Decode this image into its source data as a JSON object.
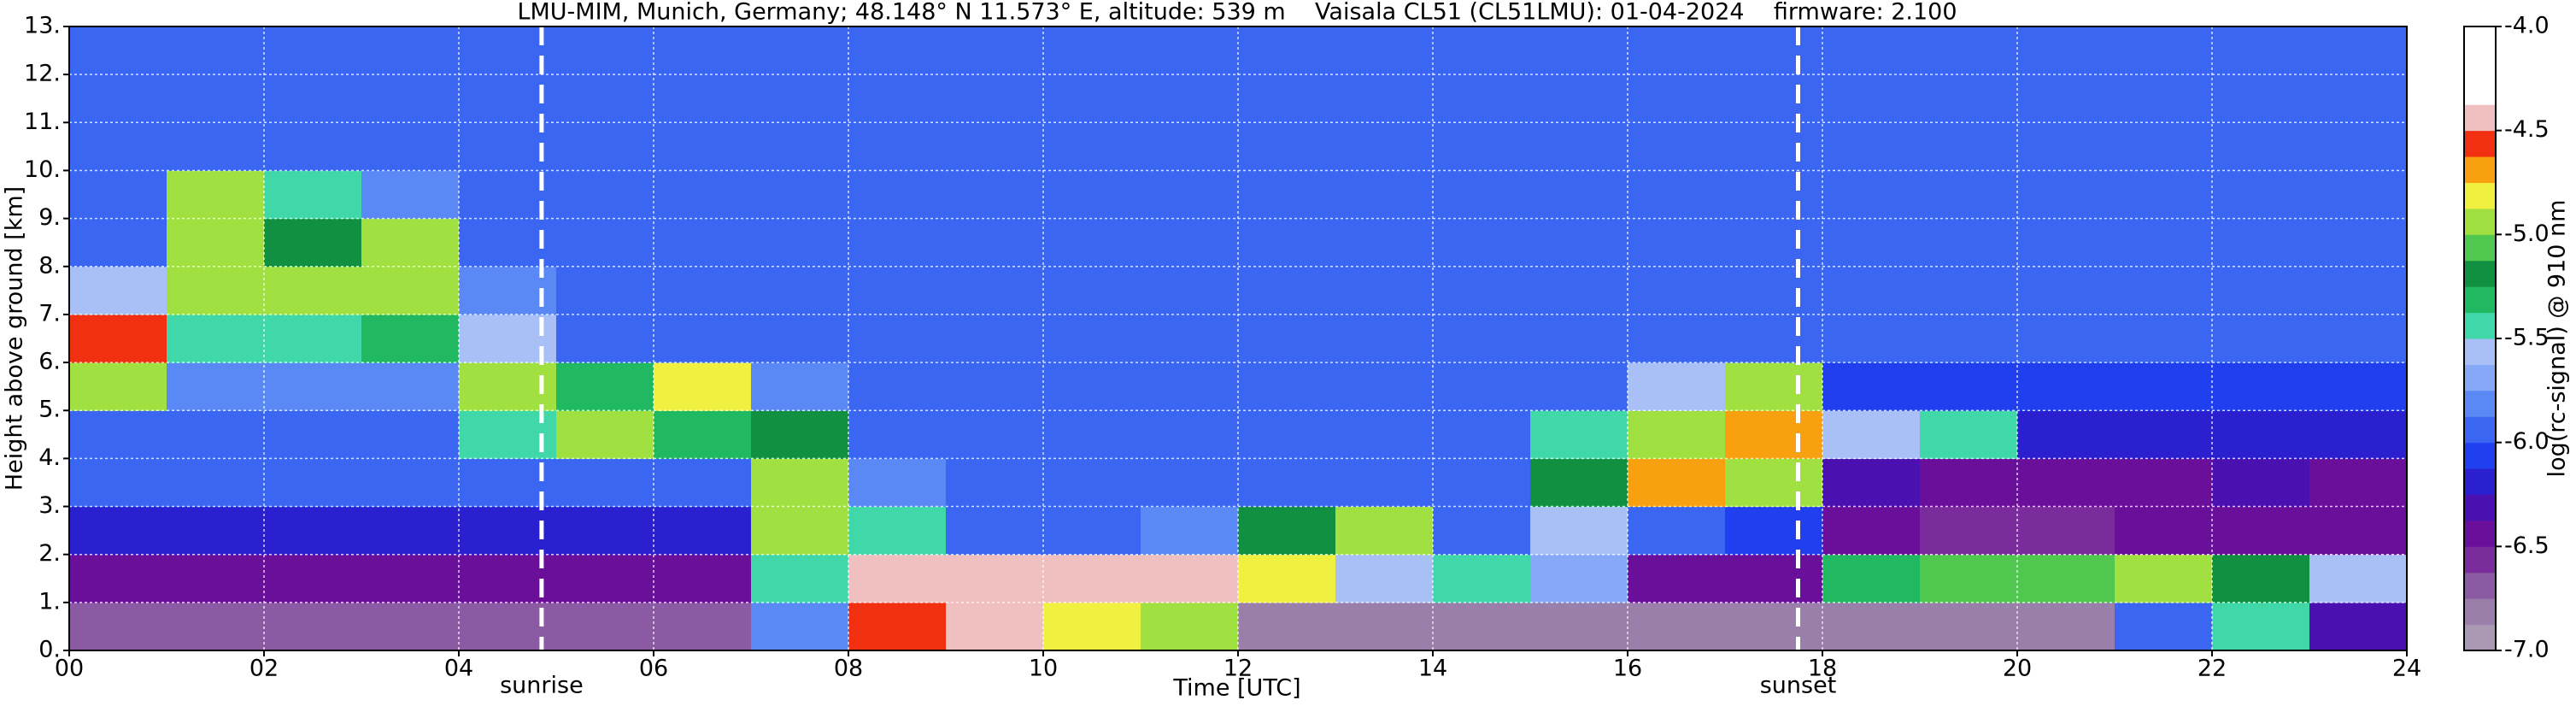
{
  "chart_data": {
    "type": "heatmap",
    "title": "LMU-MIM, Munich, Germany; 48.148° N 11.573° E, altitude: 539 m    Vaisala CL51 (CL51LMU): 01-04-2024    firmware: 2.100",
    "xlabel": "Time [UTC]",
    "ylabel": "Height above ground [km]",
    "colorbar_label": "log(rc-signal) @ 910 nm",
    "xlim": [
      0,
      24
    ],
    "ylim": [
      0,
      13
    ],
    "xticks": [
      {
        "value": 0,
        "label": "00"
      },
      {
        "value": 2,
        "label": "02"
      },
      {
        "value": 4,
        "label": "04"
      },
      {
        "value": 6,
        "label": "06"
      },
      {
        "value": 8,
        "label": "08"
      },
      10,
      12,
      14,
      16,
      18,
      20,
      22,
      24
    ],
    "yticks": [
      {
        "value": 0,
        "label": "0."
      },
      {
        "value": 1,
        "label": "1."
      },
      {
        "value": 2,
        "label": "2."
      },
      {
        "value": 3,
        "label": "3."
      },
      {
        "value": 4,
        "label": "4."
      },
      {
        "value": 5,
        "label": "5."
      },
      {
        "value": 6,
        "label": "6."
      },
      {
        "value": 7,
        "label": "7."
      },
      {
        "value": 8,
        "label": "8."
      },
      {
        "value": 9,
        "label": "9."
      },
      {
        "value": 10,
        "label": "10."
      },
      {
        "value": 11,
        "label": "11."
      },
      {
        "value": 12,
        "label": "12."
      },
      {
        "value": 13,
        "label": "13."
      }
    ],
    "grid": true,
    "zlim": [
      -7,
      -4
    ],
    "cbticks": [
      {
        "value": -7,
        "label": "-7.0"
      },
      {
        "value": -6.5,
        "label": "-6.5"
      },
      {
        "value": -6,
        "label": "-6.0"
      },
      {
        "value": -5.5,
        "label": "-5.5"
      },
      {
        "value": -5,
        "label": "-5.0"
      },
      {
        "value": -4.5,
        "label": "-4.5"
      },
      {
        "value": -4,
        "label": "-4.0"
      }
    ],
    "colormap": [
      "#a999b3",
      "#9a7fab",
      "#8a5aa3",
      "#7a2c9c",
      "#6a0f9a",
      "#4a10b0",
      "#2a20d0",
      "#2040f0",
      "#3a66f2",
      "#5a88f4",
      "#86a8f6",
      "#a8c0f6",
      "#40d8a8",
      "#20b860",
      "#109040",
      "#50c850",
      "#a0e040",
      "#f0f040",
      "#f8a010",
      "#f03010",
      "#f0c0c0",
      "#ffffff",
      "#ffffff",
      "#ffffff"
    ],
    "xbins": [
      0,
      1,
      2,
      3,
      4,
      5,
      6,
      7,
      8,
      9,
      10,
      11,
      12,
      13,
      14,
      15,
      16,
      17,
      18,
      19,
      20,
      21,
      22,
      23,
      24
    ],
    "ybins": [
      0,
      1,
      2,
      3,
      4,
      5,
      6,
      7,
      8,
      9,
      10,
      11,
      12,
      13
    ],
    "z": [
      [
        -6.7,
        -6.7,
        -6.7,
        -6.7,
        -6.7,
        -6.7,
        -6.7,
        -5.8,
        -4.6,
        -4.5,
        -4.8,
        -5.0,
        -6.8,
        -6.8,
        -6.8,
        -6.8,
        -6.8,
        -6.8,
        -6.8,
        -6.8,
        -6.8,
        -6.0,
        -5.5,
        -6.3
      ],
      [
        -6.5,
        -6.5,
        -6.5,
        -6.5,
        -6.5,
        -6.5,
        -6.5,
        -5.5,
        -4.5,
        -4.4,
        -4.4,
        -4.5,
        -4.8,
        -5.6,
        -5.5,
        -5.7,
        -6.4,
        -6.4,
        -5.3,
        -5.1,
        -5.1,
        -5.0,
        -5.2,
        -5.6
      ],
      [
        -6.2,
        -6.2,
        -6.2,
        -6.2,
        -6.2,
        -6.2,
        -6.2,
        -5.0,
        -5.4,
        -6.0,
        -6.0,
        -5.8,
        -5.2,
        -5.0,
        -6.0,
        -5.6,
        -6.0,
        -6.1,
        -6.5,
        -6.6,
        -6.6,
        -6.5,
        -6.4,
        -6.5
      ],
      [
        -6.0,
        -6.0,
        -6.0,
        -6.0,
        -6.0,
        -6.0,
        -6.0,
        -4.9,
        -5.8,
        -6.0,
        -6.0,
        -6.0,
        -6.0,
        -6.0,
        -6.0,
        -5.2,
        -4.7,
        -5.0,
        -6.3,
        -6.4,
        -6.4,
        -6.4,
        -6.3,
        -6.4
      ],
      [
        -6.0,
        -6.0,
        -6.0,
        -6.0,
        -5.4,
        -4.9,
        -5.3,
        -5.2,
        -6.0,
        -6.0,
        -6.0,
        -6.0,
        -6.0,
        -6.0,
        -6.0,
        -5.5,
        -5.0,
        -4.7,
        -5.6,
        -5.4,
        -6.2,
        -6.2,
        -6.2,
        -6.2
      ],
      [
        -5.0,
        -5.8,
        -5.8,
        -5.8,
        -5.0,
        -5.3,
        -4.8,
        -5.8,
        -6.0,
        -6.0,
        -6.0,
        -6.0,
        -6.0,
        -6.0,
        -6.0,
        -6.0,
        -5.6,
        -5.0,
        -6.1,
        -6.1,
        -6.1,
        -6.1,
        -6.1,
        -6.1
      ],
      [
        -4.6,
        -5.4,
        -5.4,
        -5.3,
        -5.6,
        -6.0,
        -6.0,
        -6.0,
        -6.0,
        -6.0,
        -6.0,
        -6.0,
        -6.0,
        -6.0,
        -6.0,
        -6.0,
        -6.0,
        -6.0,
        -6.0,
        -6.0,
        -6.0,
        -6.0,
        -6.0,
        -6.0
      ],
      [
        -5.6,
        -5.0,
        -4.9,
        -5.0,
        -5.8,
        -5.95,
        -5.95,
        -5.95,
        -5.95,
        -5.95,
        -5.95,
        -5.95,
        -5.95,
        -5.95,
        -5.95,
        -5.95,
        -5.95,
        -5.95,
        -5.95,
        -5.95,
        -5.95,
        -5.95,
        -5.95,
        -5.95
      ],
      [
        -6.0,
        -4.9,
        -5.2,
        -5.0,
        -5.9,
        -5.95,
        -5.95,
        -5.95,
        -5.95,
        -5.95,
        -5.95,
        -5.95,
        -5.95,
        -5.95,
        -5.95,
        -5.95,
        -5.95,
        -5.95,
        -5.95,
        -5.95,
        -5.95,
        -5.95,
        -5.95,
        -5.95
      ],
      [
        -6.0,
        -4.9,
        -5.5,
        -5.8,
        -5.95,
        -5.95,
        -5.95,
        -5.95,
        -5.95,
        -5.95,
        -5.95,
        -5.95,
        -5.95,
        -5.95,
        -5.95,
        -5.95,
        -5.95,
        -5.95,
        -5.95,
        -5.95,
        -5.95,
        -5.95,
        -5.95,
        -5.95
      ],
      [
        -5.9,
        -5.9,
        -5.9,
        -5.9,
        -5.9,
        -5.9,
        -5.9,
        -5.9,
        -5.9,
        -5.9,
        -5.9,
        -5.9,
        -5.9,
        -5.9,
        -5.9,
        -5.9,
        -5.9,
        -5.9,
        -5.9,
        -5.9,
        -5.9,
        -5.9,
        -5.9,
        -5.9
      ],
      [
        -5.9,
        -5.9,
        -5.9,
        -5.9,
        -5.9,
        -5.9,
        -5.9,
        -5.9,
        -5.9,
        -5.9,
        -5.9,
        -5.9,
        -5.9,
        -5.9,
        -5.9,
        -5.9,
        -5.9,
        -5.9,
        -5.9,
        -5.9,
        -5.9,
        -5.9,
        -5.9,
        -5.9
      ],
      [
        -5.9,
        -5.9,
        -5.9,
        -5.9,
        -5.9,
        -5.9,
        -5.9,
        -5.9,
        -5.9,
        -5.9,
        -5.9,
        -5.9,
        -5.9,
        -5.9,
        -5.9,
        -5.9,
        -5.9,
        -5.9,
        -5.9,
        -5.9,
        -5.9,
        -5.9,
        -5.9,
        -5.9
      ]
    ],
    "annotations": [
      {
        "x": 4.85,
        "text": "sunrise"
      },
      {
        "x": 17.75,
        "text": "sunset"
      }
    ]
  }
}
